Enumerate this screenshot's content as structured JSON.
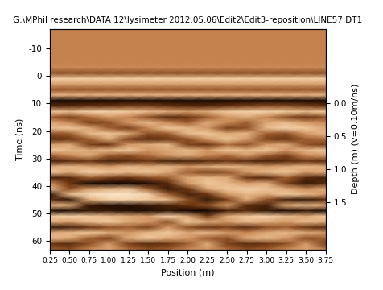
{
  "chart_data": {
    "type": "heatmap",
    "title": "G:\\MPhil research\\DATA 12\\lysimeter 2012.05.06\\Edit2\\Edit3-reposition\\LINE57.DT1",
    "x_label": "Position (m)",
    "y_label": "Time (ns)",
    "y2_label": "Depth (m) (v=0.10m/ns)",
    "x": [
      0.25,
      0.5,
      0.75,
      1.0,
      1.25,
      1.5,
      1.75,
      2.0,
      2.25,
      2.5,
      2.75,
      3.0,
      3.25,
      3.5,
      3.75
    ],
    "y": [
      -17,
      -15,
      -13,
      -11,
      -9,
      -7,
      -5,
      -3,
      -1,
      1,
      3,
      5,
      7,
      9,
      11,
      13,
      15,
      17,
      19,
      21,
      23,
      25,
      27,
      29,
      31,
      33,
      35,
      37,
      39,
      41,
      43,
      45,
      47,
      49,
      51,
      53,
      55,
      57,
      59,
      61,
      63
    ],
    "cells": [
      [
        0.05,
        0.05,
        0.05,
        0.05,
        0.05,
        0.05,
        0.05,
        0.05,
        0.05,
        0.05,
        0.05,
        0.05,
        0.05,
        0.05,
        0.05
      ],
      [
        0.05,
        0.05,
        0.05,
        0.05,
        0.05,
        0.05,
        0.05,
        0.05,
        0.05,
        0.05,
        0.05,
        0.05,
        0.05,
        0.05,
        0.05
      ],
      [
        0.05,
        0.05,
        0.05,
        0.05,
        0.05,
        0.05,
        0.05,
        0.05,
        0.05,
        0.05,
        0.05,
        0.05,
        0.05,
        0.05,
        0.05
      ],
      [
        0.05,
        0.05,
        0.05,
        0.05,
        0.05,
        0.05,
        0.05,
        0.05,
        0.05,
        0.05,
        0.05,
        0.05,
        0.05,
        0.05,
        0.05
      ],
      [
        0.05,
        0.05,
        0.05,
        0.05,
        0.05,
        0.05,
        0.05,
        0.05,
        0.05,
        0.05,
        0.05,
        0.05,
        0.05,
        0.05,
        0.05
      ],
      [
        0.05,
        0.05,
        0.05,
        0.05,
        0.05,
        0.05,
        0.05,
        0.05,
        0.05,
        0.05,
        0.05,
        0.05,
        0.05,
        0.05,
        0.05
      ],
      [
        0.05,
        0.05,
        0.05,
        0.05,
        0.05,
        0.05,
        0.05,
        0.05,
        0.05,
        0.05,
        0.05,
        0.05,
        0.05,
        0.05,
        0.05
      ],
      [
        0.1,
        0.1,
        0.1,
        0.1,
        0.1,
        0.1,
        0.1,
        0.1,
        0.1,
        0.1,
        0.1,
        0.1,
        0.1,
        0.1,
        0.1
      ],
      [
        -0.3,
        -0.3,
        -0.3,
        -0.3,
        -0.3,
        -0.3,
        -0.3,
        -0.3,
        -0.3,
        -0.3,
        -0.3,
        -0.3,
        -0.3,
        -0.3,
        -0.3
      ],
      [
        0.55,
        0.55,
        0.55,
        0.55,
        0.55,
        0.55,
        0.55,
        0.55,
        0.55,
        0.55,
        0.55,
        0.55,
        0.55,
        0.55,
        0.55
      ],
      [
        0.25,
        0.25,
        0.25,
        0.25,
        0.25,
        0.25,
        0.25,
        0.25,
        0.25,
        0.25,
        0.25,
        0.25,
        0.25,
        0.25,
        0.25
      ],
      [
        -0.25,
        -0.25,
        -0.25,
        -0.25,
        -0.25,
        -0.25,
        -0.25,
        -0.25,
        -0.25,
        -0.25,
        -0.25,
        -0.25,
        -0.25,
        -0.25,
        -0.25
      ],
      [
        0.35,
        0.35,
        0.35,
        0.35,
        0.35,
        0.35,
        0.35,
        0.35,
        0.35,
        0.35,
        0.35,
        0.35,
        0.35,
        0.35,
        0.35
      ],
      [
        -0.95,
        -0.95,
        -0.95,
        -0.95,
        -0.95,
        -0.95,
        -0.95,
        -0.95,
        -0.95,
        -0.95,
        -0.95,
        -0.95,
        -0.95,
        -0.95,
        -0.95
      ],
      [
        -0.6,
        -0.6,
        -0.5,
        -0.5,
        -0.4,
        -0.4,
        -0.5,
        -0.6,
        -0.6,
        -0.5,
        -0.4,
        -0.3,
        -0.3,
        -0.4,
        -0.5
      ],
      [
        0.5,
        0.4,
        0.6,
        0.6,
        0.5,
        0.4,
        0.3,
        0.2,
        0.3,
        0.5,
        0.6,
        0.6,
        0.5,
        0.4,
        0.5
      ],
      [
        -0.2,
        -0.4,
        -0.1,
        0.2,
        0.1,
        -0.3,
        -0.6,
        -0.5,
        -0.2,
        0.2,
        0.3,
        0.1,
        -0.3,
        -0.5,
        -0.3
      ],
      [
        0.3,
        0.1,
        -0.4,
        -0.3,
        0.2,
        0.4,
        0.1,
        -0.2,
        0.3,
        0.1,
        -0.2,
        0.3,
        0.4,
        0.2,
        0.1
      ],
      [
        0.4,
        0.5,
        0.3,
        -0.2,
        -0.4,
        0.1,
        0.5,
        0.4,
        0.2,
        -0.4,
        -0.3,
        0.4,
        0.6,
        0.5,
        0.3
      ],
      [
        -0.3,
        -0.2,
        0.4,
        0.5,
        0.3,
        -0.3,
        -0.2,
        0.4,
        0.5,
        0.3,
        0.4,
        -0.2,
        -0.3,
        0.2,
        0.4
      ],
      [
        -0.6,
        -0.5,
        -0.2,
        0.3,
        -0.4,
        -0.6,
        -0.5,
        -0.3,
        0.2,
        0.5,
        0.2,
        -0.4,
        -0.5,
        -0.2,
        -0.1
      ],
      [
        0.2,
        0.3,
        -0.4,
        -0.5,
        0.2,
        0.3,
        0.4,
        -0.4,
        -0.5,
        -0.1,
        -0.3,
        0.2,
        0.3,
        -0.3,
        -0.4
      ],
      [
        0.5,
        0.4,
        0.3,
        0.4,
        0.5,
        0.2,
        0.3,
        0.4,
        0.2,
        0.5,
        0.4,
        0.5,
        0.2,
        0.4,
        0.5
      ],
      [
        -0.2,
        0.1,
        0.3,
        -0.2,
        -0.3,
        -0.1,
        0.2,
        0.3,
        0.1,
        -0.1,
        0.2,
        -0.2,
        -0.4,
        0.1,
        0.2
      ],
      [
        -0.7,
        -0.6,
        -0.5,
        -0.7,
        -0.6,
        -0.5,
        -0.7,
        -0.7,
        -0.6,
        -0.5,
        -0.6,
        -0.7,
        -0.6,
        -0.5,
        -0.6
      ],
      [
        0.3,
        0.4,
        0.3,
        0.2,
        0.4,
        0.3,
        0.4,
        0.2,
        0.3,
        0.4,
        0.3,
        0.2,
        0.3,
        0.4,
        0.3
      ],
      [
        0.5,
        0.3,
        0.6,
        0.5,
        0.4,
        0.5,
        0.3,
        -0.2,
        -0.4,
        -0.3,
        0.2,
        0.4,
        0.5,
        0.2,
        0.3
      ],
      [
        -0.7,
        -0.6,
        -0.2,
        -0.4,
        -0.5,
        -0.3,
        -0.2,
        0.3,
        0.4,
        0.3,
        -0.5,
        -0.6,
        -0.2,
        -0.6,
        -0.7
      ],
      [
        0.1,
        -0.5,
        -0.95,
        -1.0,
        -1.0,
        -0.9,
        -0.6,
        0.2,
        0.5,
        0.4,
        0.2,
        0.3,
        -0.4,
        -0.8,
        -0.6
      ],
      [
        0.4,
        -0.3,
        0.2,
        0.3,
        0.4,
        -0.2,
        -0.8,
        -0.5,
        0.3,
        0.5,
        0.6,
        0.5,
        0.3,
        0.1,
        0.3
      ],
      [
        -0.8,
        0.4,
        0.7,
        0.8,
        0.8,
        0.6,
        -0.2,
        -0.7,
        -0.5,
        0.2,
        0.4,
        0.3,
        0.5,
        0.4,
        0.2
      ],
      [
        -0.6,
        -0.8,
        0.3,
        0.6,
        0.6,
        0.5,
        0.4,
        -0.3,
        -0.8,
        -0.4,
        0.3,
        -0.3,
        -0.7,
        -0.8,
        -0.6
      ],
      [
        0.4,
        0.3,
        -0.8,
        -0.9,
        -0.9,
        -0.8,
        -0.7,
        -0.5,
        -0.3,
        0.2,
        -0.6,
        -0.7,
        0.3,
        0.4,
        0.3
      ],
      [
        -0.9,
        -0.9,
        -0.8,
        -0.8,
        -0.9,
        -0.9,
        -0.8,
        -1.0,
        -1.0,
        -0.7,
        -0.6,
        -0.8,
        -0.9,
        -0.8,
        -0.9
      ],
      [
        0.5,
        0.6,
        0.5,
        0.4,
        0.3,
        0.2,
        0.6,
        0.3,
        -0.4,
        0.3,
        0.5,
        0.6,
        0.4,
        0.3,
        0.5
      ],
      [
        0.3,
        0.2,
        0.4,
        0.5,
        0.3,
        0.2,
        -0.3,
        0.5,
        0.3,
        0.2,
        0.4,
        0.3,
        0.2,
        0.4,
        0.3
      ],
      [
        -0.8,
        -0.7,
        -0.5,
        -0.3,
        -0.2,
        -0.4,
        0.2,
        -0.3,
        -0.5,
        -0.4,
        -0.6,
        -0.3,
        -0.2,
        -0.5,
        -0.6
      ],
      [
        0.3,
        0.4,
        0.5,
        0.3,
        0.2,
        0.4,
        0.5,
        0.3,
        0.4,
        0.2,
        0.1,
        0.3,
        0.4,
        0.3,
        0.2
      ],
      [
        0.4,
        0.3,
        -0.2,
        -0.4,
        0.3,
        0.5,
        0.3,
        0.2,
        -0.2,
        -0.3,
        0.3,
        0.4,
        0.2,
        -0.3,
        -0.2
      ],
      [
        -0.5,
        -0.6,
        -0.3,
        0.2,
        -0.4,
        -0.6,
        -0.5,
        -0.2,
        0.3,
        -0.4,
        -0.6,
        -0.5,
        -0.3,
        0.2,
        -0.4
      ],
      [
        -0.2,
        -0.3,
        0.1,
        0.3,
        -0.1,
        -0.3,
        -0.2,
        0.1,
        0.2,
        -0.1,
        -0.3,
        -0.2,
        0.1,
        0.3,
        0.0
      ]
    ],
    "value_range": [
      -1,
      1
    ],
    "xlim": [
      0.25,
      3.75
    ],
    "xticks": [
      0.25,
      {
        "value": 0.5,
        "label": "0.50"
      },
      0.75,
      {
        "value": 1.0,
        "label": "1.00"
      },
      1.25,
      {
        "value": 1.5,
        "label": "1.50"
      },
      1.75,
      {
        "value": 2.0,
        "label": "2.00"
      },
      2.25,
      {
        "value": 2.5,
        "label": "2.50"
      },
      2.75,
      {
        "value": 3.0,
        "label": "3.00"
      },
      3.25,
      {
        "value": 3.5,
        "label": "3.50"
      },
      3.75
    ],
    "ylim": [
      63,
      -17
    ],
    "yticks": [
      -10,
      0,
      10,
      20,
      30,
      40,
      50,
      60
    ],
    "y2lim": [
      2.2083,
      -1.125
    ],
    "y2ticks": [
      {
        "value": 0,
        "label": "0.0"
      },
      0.5,
      {
        "value": 1,
        "label": "1.0"
      },
      1.5
    ]
  }
}
